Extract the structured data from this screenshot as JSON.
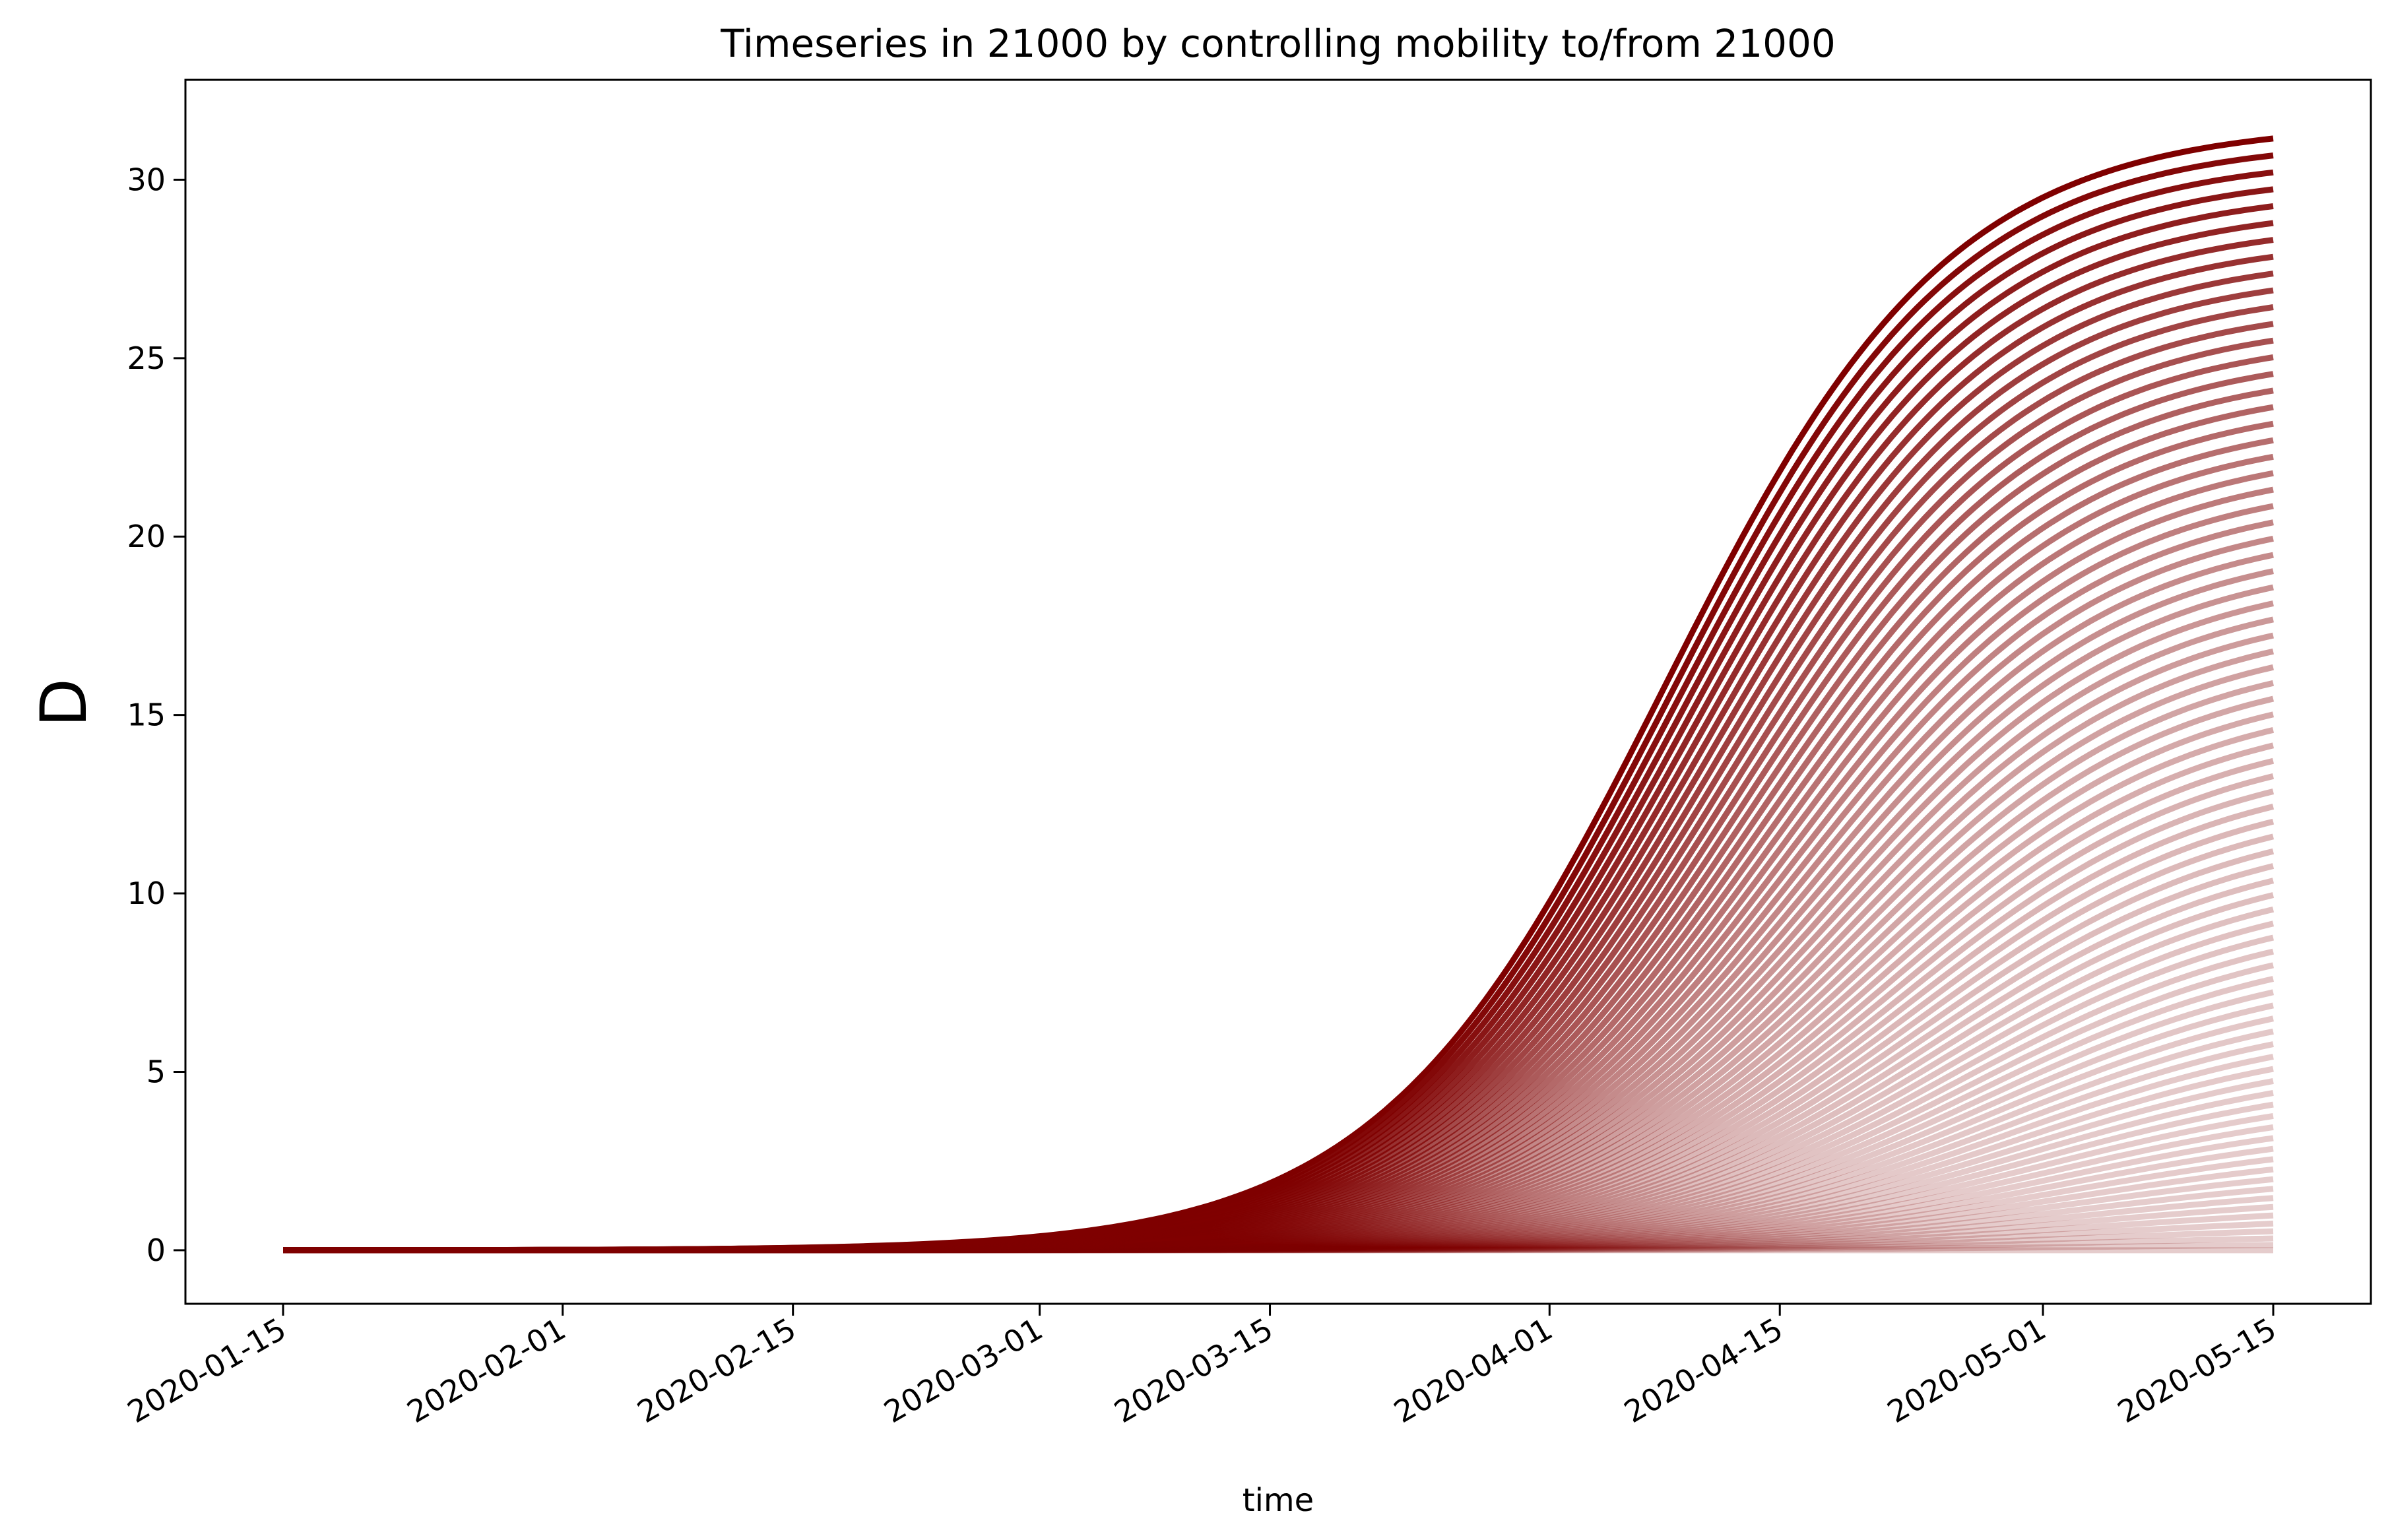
{
  "chart_data": {
    "type": "line",
    "title": "Timeseries in 21000 by controlling mobility to/from 21000",
    "xlabel": "time",
    "ylabel": "D",
    "x_range": [
      "2020-01-15",
      "2020-05-15"
    ],
    "ylim": [
      -1.5,
      32.8
    ],
    "x_ticks": [
      "2020-01-15",
      "2020-02-01",
      "2020-02-15",
      "2020-03-01",
      "2020-03-15",
      "2020-04-01",
      "2020-04-15",
      "2020-05-01",
      "2020-05-15"
    ],
    "y_ticks": [
      "0",
      "5",
      "10",
      "15",
      "20",
      "25",
      "30"
    ],
    "grid": false,
    "legend": "none",
    "colors": {
      "line": "#7f0000",
      "axes": "#000000",
      "background": "#ffffff"
    },
    "series_description": "Family of 80 logistic-like curves, one per mobility-control level; dark red (full mobility) to faint pink (reduced mobility).",
    "series_count": 80,
    "final_values": {
      "max": 31.6,
      "min": 0.0
    },
    "representative_series": [
      {
        "x": [
          "2020-01-15",
          "2020-02-15",
          "2020-03-01",
          "2020-03-15",
          "2020-03-22",
          "2020-04-01",
          "2020-04-08",
          "2020-04-15",
          "2020-04-22",
          "2020-05-01",
          "2020-05-08",
          "2020-05-15"
        ],
        "y": [
          0.0,
          0.0,
          0.1,
          0.6,
          2.0,
          8.0,
          14.5,
          20.5,
          25.0,
          28.8,
          30.6,
          31.6
        ]
      },
      {
        "x": [
          "2020-01-15",
          "2020-03-01",
          "2020-03-15",
          "2020-04-01",
          "2020-04-15",
          "2020-05-01",
          "2020-05-15"
        ],
        "y": [
          0.0,
          0.0,
          0.2,
          2.5,
          8.0,
          15.0,
          18.0
        ]
      },
      {
        "x": [
          "2020-01-15",
          "2020-03-15",
          "2020-04-01",
          "2020-04-15",
          "2020-05-01",
          "2020-05-15"
        ],
        "y": [
          0.0,
          0.0,
          0.3,
          1.5,
          3.5,
          5.0
        ]
      },
      {
        "x": [
          "2020-01-15",
          "2020-05-15"
        ],
        "y": [
          0.0,
          0.0
        ]
      }
    ]
  }
}
